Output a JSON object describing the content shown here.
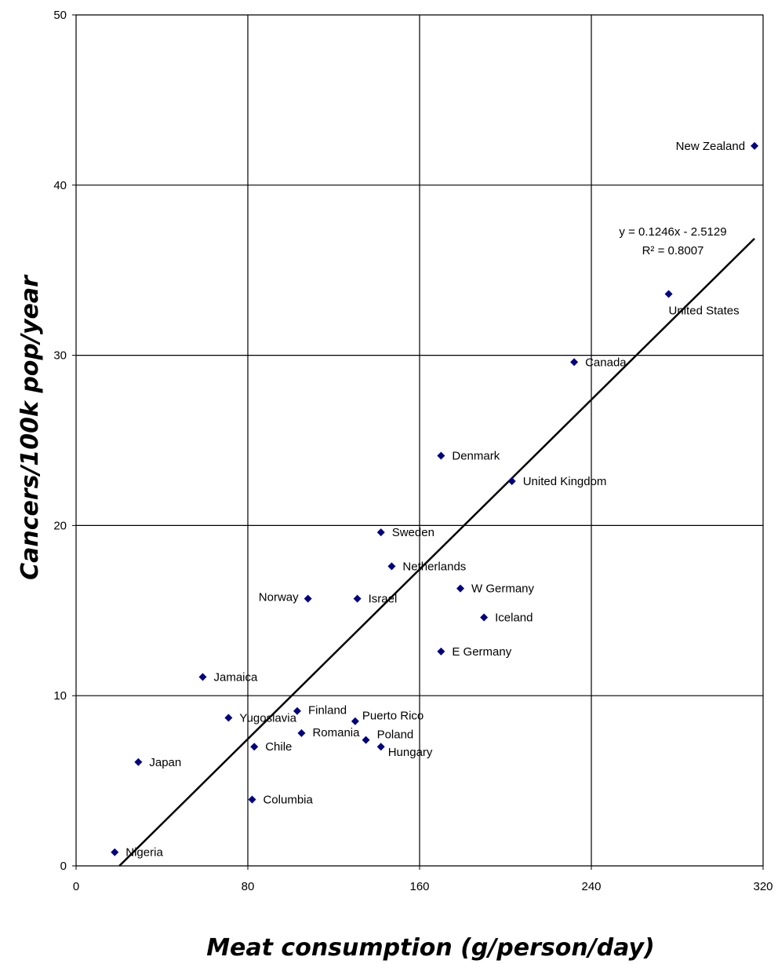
{
  "chart_data": {
    "type": "scatter",
    "title": "",
    "xlabel": "Meat consumption (g/person/day)",
    "ylabel": "Cancers/100k pop/year",
    "xlim": [
      0,
      320
    ],
    "ylim": [
      0,
      50
    ],
    "xticks": [
      0,
      80,
      160,
      240,
      320
    ],
    "yticks": [
      0,
      10,
      20,
      30,
      40,
      50
    ],
    "grid": true,
    "marker_color": "#000080",
    "line_color": "#000000",
    "points": [
      {
        "label": "New Zealand",
        "x": 316,
        "y": 42.3
      },
      {
        "label": "United States",
        "x": 276,
        "y": 33.6
      },
      {
        "label": "Canada",
        "x": 232,
        "y": 29.6
      },
      {
        "label": "Denmark",
        "x": 170,
        "y": 24.1
      },
      {
        "label": "United Kingdom",
        "x": 203,
        "y": 22.6
      },
      {
        "label": "Sweden",
        "x": 142,
        "y": 19.6
      },
      {
        "label": "Netherlands",
        "x": 147,
        "y": 17.6
      },
      {
        "label": "W Germany",
        "x": 179,
        "y": 16.3
      },
      {
        "label": "Norway",
        "x": 108,
        "y": 15.7
      },
      {
        "label": "Israel",
        "x": 131,
        "y": 15.7
      },
      {
        "label": "Iceland",
        "x": 190,
        "y": 14.6
      },
      {
        "label": "E Germany",
        "x": 170,
        "y": 12.6
      },
      {
        "label": "Jamaica",
        "x": 59,
        "y": 11.1
      },
      {
        "label": "Finland",
        "x": 103,
        "y": 9.1
      },
      {
        "label": "Yugoslavia",
        "x": 71,
        "y": 8.7
      },
      {
        "label": "Puerto Rico",
        "x": 130,
        "y": 8.5
      },
      {
        "label": "Romania",
        "x": 105,
        "y": 7.8
      },
      {
        "label": "Poland",
        "x": 135,
        "y": 7.4
      },
      {
        "label": "Chile",
        "x": 83,
        "y": 7.0
      },
      {
        "label": "Hungary",
        "x": 142,
        "y": 7.0
      },
      {
        "label": "Japan",
        "x": 29,
        "y": 6.1
      },
      {
        "label": "Columbia",
        "x": 82,
        "y": 3.9
      },
      {
        "label": "Nigeria",
        "x": 18,
        "y": 0.8
      }
    ],
    "trendline": {
      "slope": 0.1246,
      "intercept": -2.5129,
      "equation": "y = 0.1246x - 2.5129",
      "r2": "R² = 0.8007"
    }
  }
}
